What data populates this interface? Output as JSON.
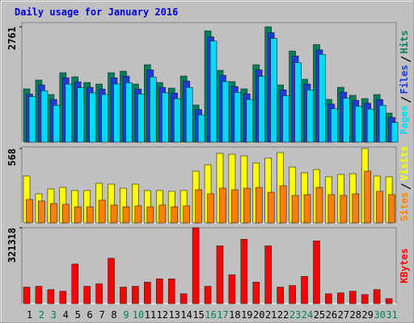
{
  "chart_data": [
    {
      "type": "bar",
      "title": "Daily usage for January 2016",
      "title_color": "#0000cc",
      "ylim": [
        0,
        2860
      ],
      "yticks": [
        2761
      ],
      "series": [
        {
          "name": "Hits",
          "color": "#00805c",
          "values": [
            1274,
            1486,
            1139,
            1660,
            1563,
            1428,
            1390,
            1660,
            1698,
            1390,
            1853,
            1428,
            1293,
            1583,
            888,
            2663,
            1718,
            1448,
            1274,
            1853,
            2761,
            1370,
            2181,
            1505,
            2335,
            1023,
            1312,
            1119,
            1042,
            1139,
            695
          ]
        },
        {
          "name": "Files",
          "color": "#1c3cd8",
          "values": [
            1150,
            1370,
            1020,
            1540,
            1440,
            1310,
            1270,
            1540,
            1580,
            1270,
            1730,
            1310,
            1175,
            1460,
            780,
            2520,
            1600,
            1330,
            1155,
            1730,
            2620,
            1250,
            2060,
            1390,
            2210,
            910,
            1195,
            1000,
            930,
            1020,
            590
          ]
        },
        {
          "name": "Pages",
          "color": "#00d8ff",
          "values": [
            1090,
            1230,
            880,
            1390,
            1300,
            1180,
            1140,
            1390,
            1420,
            1150,
            1560,
            1180,
            1040,
            1310,
            650,
            2420,
            1450,
            1190,
            1020,
            1570,
            2480,
            1110,
            1900,
            1250,
            2100,
            800,
            1050,
            860,
            790,
            880,
            470
          ]
        }
      ]
    },
    {
      "type": "bar",
      "ylim": [
        0,
        580
      ],
      "yticks": [
        568
      ],
      "series": [
        {
          "name": "Visits",
          "color": "#ffff00",
          "values": [
            358,
            222,
            259,
            271,
            247,
            247,
            302,
            296,
            265,
            296,
            247,
            247,
            241,
            247,
            395,
            444,
            531,
            524,
            512,
            457,
            494,
            537,
            426,
            383,
            407,
            352,
            370,
            376,
            568,
            358,
            352
          ]
        },
        {
          "name": "Sites",
          "color": "#ff8000",
          "values": [
            179,
            167,
            148,
            142,
            123,
            123,
            173,
            136,
            123,
            130,
            123,
            136,
            123,
            130,
            253,
            222,
            265,
            253,
            265,
            271,
            234,
            284,
            210,
            216,
            271,
            216,
            210,
            222,
            395,
            241,
            216
          ]
        }
      ]
    },
    {
      "type": "bar",
      "ylim": [
        0,
        321318
      ],
      "yticks": [
        321318
      ],
      "series": [
        {
          "name": "KBytes",
          "color": "#ff0000",
          "values": [
            69860,
            73353,
            59381,
            52395,
            167664,
            73353,
            83832,
            192115,
            69860,
            73353,
            90818,
            104790,
            104790,
            41916,
            321318,
            73353,
            244510,
            122255,
            272454,
            90818,
            244510,
            69860,
            76846,
            115269,
            265468,
            41916,
            45409,
            52395,
            38423,
            59381,
            20958
          ]
        }
      ],
      "categories": [
        "1",
        "2",
        "3",
        "4",
        "5",
        "6",
        "7",
        "8",
        "9",
        "10",
        "11",
        "12",
        "13",
        "14",
        "15",
        "16",
        "17",
        "18",
        "19",
        "20",
        "21",
        "22",
        "23",
        "24",
        "25",
        "26",
        "27",
        "28",
        "29",
        "30",
        "31"
      ],
      "category_colors": [
        "#000000",
        "#00805c",
        "#00805c",
        "#000000",
        "#000000",
        "#000000",
        "#000000",
        "#000000",
        "#00805c",
        "#00805c",
        "#000000",
        "#000000",
        "#000000",
        "#000000",
        "#000000",
        "#00805c",
        "#00805c",
        "#000000",
        "#000000",
        "#000000",
        "#000000",
        "#000000",
        "#00805c",
        "#00805c",
        "#000000",
        "#000000",
        "#000000",
        "#000000",
        "#000000",
        "#00805c",
        "#00805c"
      ]
    }
  ]
}
